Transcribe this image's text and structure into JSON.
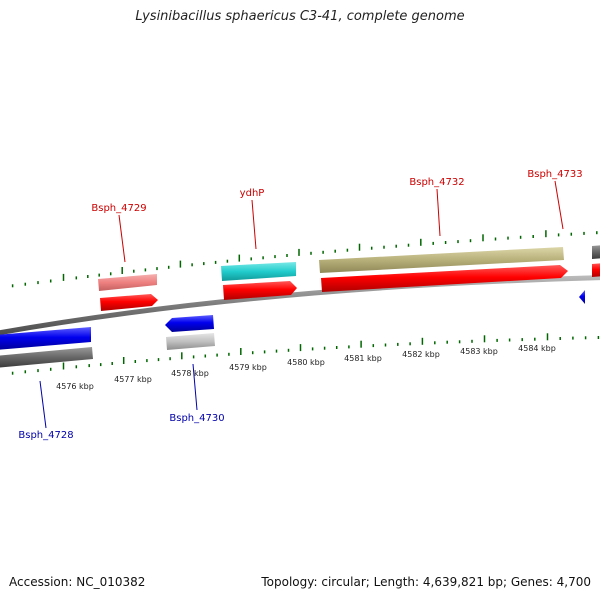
{
  "map": {
    "title": "Lysinibacillus sphaericus C3-41, complete genome",
    "accession_text": "Accession: NC_010382",
    "summary_text": "Topology: circular; Length: 4,639,821 bp; Genes: 4,700",
    "axis_ticks": [
      "4576 kbp",
      "4577 kbp",
      "4578 kbp",
      "4579 kbp",
      "4580 kbp",
      "4581 kbp",
      "4582 kbp",
      "4583 kbp",
      "4584 kbp"
    ],
    "forward_labels": [
      "Bsph_4729",
      "ydhP",
      "Bsph_4732",
      "Bsph_4733"
    ],
    "reverse_labels": [
      "Bsph_4728",
      "Bsph_4730"
    ],
    "colors": {
      "forward_label": "#cc0000",
      "reverse_label": "#0000aa",
      "cds": "#ff0000",
      "reverse_cds": "#0000ee",
      "backbone": "#808080",
      "tick": "#006600",
      "feature_pink": "#f08888",
      "feature_cyan": "#22cccc",
      "feature_olive": "#b8b07a",
      "feature_gray": "#aaaaaa"
    }
  }
}
